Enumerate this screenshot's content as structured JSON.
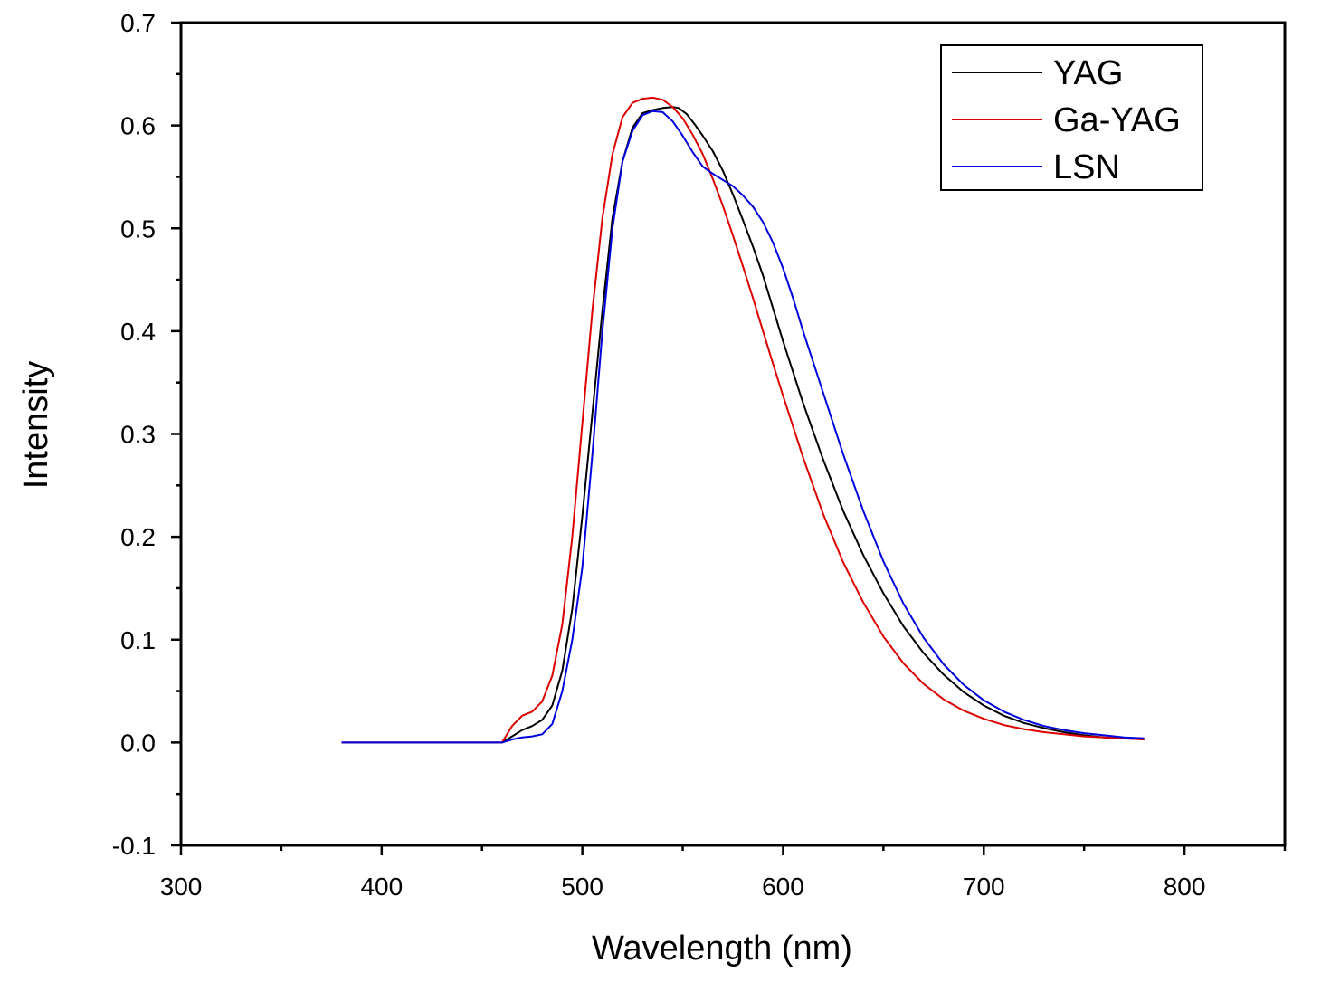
{
  "chart_data": {
    "type": "line",
    "title": "",
    "xlabel": "Wavelength (nm)",
    "ylabel": "Intensity",
    "xlim": [
      300,
      850
    ],
    "ylim": [
      -0.1,
      0.7
    ],
    "x_ticks": [
      300,
      400,
      500,
      600,
      700,
      800
    ],
    "x_tick_labels": [
      "300",
      "400",
      "500",
      "600",
      "700",
      "800"
    ],
    "x_minor_ticks": [
      350,
      450,
      550,
      650,
      750,
      850
    ],
    "y_ticks": [
      -0.1,
      0.0,
      0.1,
      0.2,
      0.3,
      0.4,
      0.5,
      0.6,
      0.7
    ],
    "y_tick_labels": [
      "-0.1",
      "0.0",
      "0.1",
      "0.2",
      "0.3",
      "0.4",
      "0.5",
      "0.6",
      "0.7"
    ],
    "y_minor_ticks": [
      -0.05,
      0.05,
      0.15,
      0.25,
      0.35,
      0.45,
      0.55,
      0.65
    ],
    "grid": false,
    "legend_position": "top-right",
    "series": [
      {
        "name": "YAG",
        "color": "#000000",
        "x": [
          380,
          460,
          465,
          470,
          475,
          480,
          485,
          490,
          495,
          500,
          505,
          510,
          515,
          520,
          525,
          530,
          535,
          540,
          545,
          548,
          552,
          556,
          560,
          565,
          570,
          575,
          580,
          585,
          590,
          595,
          600,
          610,
          620,
          630,
          640,
          650,
          660,
          670,
          680,
          690,
          700,
          710,
          720,
          730,
          740,
          750,
          760,
          770,
          780
        ],
        "y": [
          0.0,
          0.0,
          0.006,
          0.012,
          0.016,
          0.022,
          0.036,
          0.07,
          0.13,
          0.22,
          0.32,
          0.42,
          0.51,
          0.565,
          0.598,
          0.612,
          0.615,
          0.617,
          0.618,
          0.617,
          0.611,
          0.601,
          0.59,
          0.575,
          0.556,
          0.533,
          0.508,
          0.482,
          0.454,
          0.422,
          0.39,
          0.33,
          0.275,
          0.225,
          0.182,
          0.145,
          0.113,
          0.087,
          0.066,
          0.049,
          0.036,
          0.026,
          0.019,
          0.014,
          0.01,
          0.007,
          0.005,
          0.004,
          0.003
        ]
      },
      {
        "name": "Ga-YAG",
        "color": "#dd0000",
        "x": [
          380,
          460,
          465,
          470,
          475,
          480,
          485,
          490,
          495,
          500,
          505,
          510,
          515,
          520,
          525,
          530,
          535,
          540,
          545,
          550,
          555,
          560,
          565,
          570,
          575,
          580,
          585,
          590,
          595,
          600,
          610,
          620,
          630,
          640,
          650,
          660,
          670,
          680,
          690,
          700,
          710,
          720,
          730,
          740,
          750,
          760,
          770,
          780
        ],
        "y": [
          0.0,
          0.0,
          0.016,
          0.026,
          0.03,
          0.04,
          0.065,
          0.115,
          0.2,
          0.31,
          0.42,
          0.51,
          0.572,
          0.608,
          0.622,
          0.626,
          0.627,
          0.625,
          0.618,
          0.607,
          0.591,
          0.572,
          0.548,
          0.522,
          0.493,
          0.463,
          0.432,
          0.4,
          0.368,
          0.337,
          0.277,
          0.222,
          0.175,
          0.136,
          0.103,
          0.077,
          0.057,
          0.042,
          0.031,
          0.023,
          0.017,
          0.013,
          0.01,
          0.008,
          0.006,
          0.005,
          0.004,
          0.003
        ]
      },
      {
        "name": "LSN",
        "color": "#0000dd",
        "x": [
          380,
          460,
          465,
          470,
          475,
          480,
          485,
          490,
          495,
          500,
          505,
          510,
          515,
          520,
          525,
          530,
          535,
          540,
          545,
          550,
          555,
          560,
          565,
          570,
          575,
          580,
          585,
          590,
          595,
          600,
          605,
          610,
          620,
          630,
          640,
          650,
          660,
          670,
          680,
          690,
          700,
          710,
          720,
          730,
          740,
          750,
          760,
          770,
          780
        ],
        "y": [
          0.0,
          0.0,
          0.003,
          0.005,
          0.006,
          0.008,
          0.018,
          0.05,
          0.1,
          0.17,
          0.28,
          0.4,
          0.5,
          0.565,
          0.595,
          0.61,
          0.614,
          0.613,
          0.604,
          0.59,
          0.574,
          0.56,
          0.553,
          0.547,
          0.541,
          0.532,
          0.521,
          0.506,
          0.486,
          0.461,
          0.432,
          0.4,
          0.34,
          0.28,
          0.225,
          0.176,
          0.135,
          0.102,
          0.076,
          0.056,
          0.041,
          0.03,
          0.022,
          0.016,
          0.012,
          0.009,
          0.007,
          0.005,
          0.004
        ]
      }
    ]
  }
}
